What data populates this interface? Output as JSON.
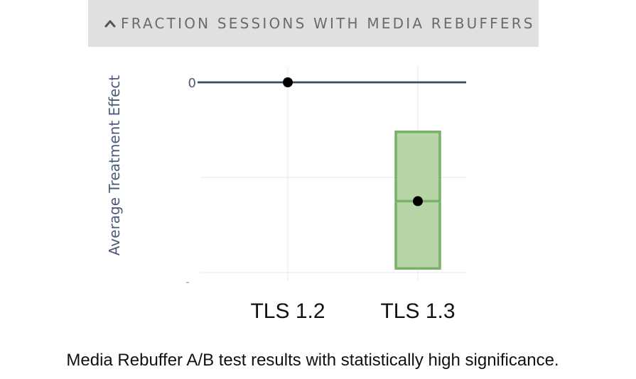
{
  "header": {
    "title": "FRACTION SESSIONS WITH MEDIA REBUFFERS",
    "icon": "chevron-up-icon"
  },
  "chart_data": {
    "type": "box",
    "categories": [
      "TLS 1.2",
      "TLS 1.3"
    ],
    "ylabel": "Average Treatment Effect",
    "yticks": [
      "0",
      "",
      ""
    ],
    "ylim": [
      -1.0,
      0.05
    ],
    "series": [
      {
        "category": "TLS 1.2",
        "point": 0.0,
        "ci": [
          0.0,
          0.0
        ]
      },
      {
        "category": "TLS 1.3",
        "point": -0.6,
        "ci": [
          -0.94,
          -0.25
        ]
      }
    ],
    "colors": {
      "box_fill": "#b7d5a7",
      "box_stroke": "#7ab16a",
      "baseline": "#3a4a5e",
      "axis_label": "#4a5a78"
    }
  },
  "caption": "Media Rebuffer A/B test results with statistically high significance."
}
